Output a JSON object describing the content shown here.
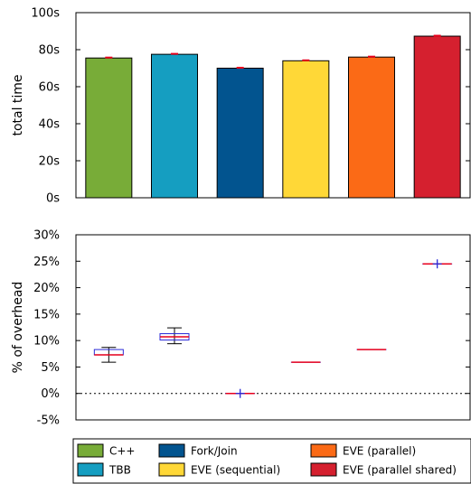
{
  "chart_data": [
    {
      "type": "bar",
      "ylabel": "total time",
      "ylim": [
        0,
        100
      ],
      "yticks": [
        "0s",
        "20s",
        "40s",
        "60s",
        "80s",
        "100s"
      ],
      "categories": [
        "C++",
        "TBB",
        "Fork/Join",
        "EVE (sequential)",
        "EVE (parallel)",
        "EVE (parallel shared)"
      ],
      "values": [
        75.5,
        77.5,
        70,
        74,
        76,
        87.3
      ],
      "colors": [
        "#78ac38",
        "#159ec1",
        "#02548f",
        "#ffd837",
        "#fb6a16",
        "#d5202f"
      ],
      "error_color": "#e8001c",
      "grid": false
    },
    {
      "type": "box",
      "ylabel": "% of overhead",
      "ylim": [
        -5,
        30
      ],
      "yticks": [
        "-5%",
        "0%",
        "5%",
        "10%",
        "15%",
        "20%",
        "25%",
        "30%"
      ],
      "reference_line": 0,
      "box_color": "#2a2ad8",
      "median_color": "#e8001c",
      "whisker_color": "#000000",
      "boxes": [
        {
          "whisker_low": 5.9,
          "q1": 7.3,
          "median": 7.3,
          "q3": 8.3,
          "whisker_high": 8.7
        },
        {
          "whisker_low": 9.4,
          "q1": 10.1,
          "median": 10.7,
          "q3": 11.3,
          "whisker_high": 12.4
        },
        {
          "whisker_low": 0,
          "q1": 0,
          "median": 0,
          "q3": 0,
          "whisker_high": 0,
          "outlier": 0
        },
        {
          "whisker_low": 5.9,
          "q1": 5.9,
          "median": 5.9,
          "q3": 5.9,
          "whisker_high": 5.9
        },
        {
          "whisker_low": 8.3,
          "q1": 8.3,
          "median": 8.3,
          "q3": 8.3,
          "whisker_high": 8.3
        },
        {
          "whisker_low": 24.5,
          "q1": 24.5,
          "median": 24.5,
          "q3": 24.5,
          "whisker_high": 24.5,
          "outlier": 24.5
        }
      ]
    }
  ],
  "legend": {
    "placement": "bottom",
    "items": [
      {
        "label": "C++",
        "color": "#78ac38"
      },
      {
        "label": "TBB",
        "color": "#159ec1"
      },
      {
        "label": "Fork/Join",
        "color": "#02548f"
      },
      {
        "label": "EVE (sequential)",
        "color": "#ffd837"
      },
      {
        "label": "EVE (parallel)",
        "color": "#fb6a16"
      },
      {
        "label": "EVE (parallel shared)",
        "color": "#d5202f"
      }
    ]
  }
}
